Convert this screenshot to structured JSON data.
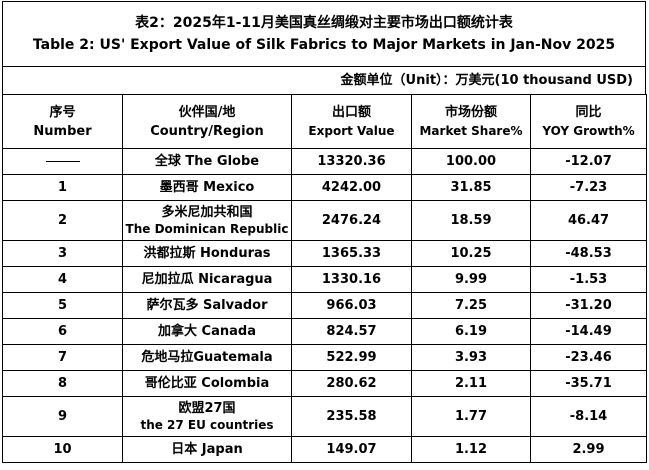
{
  "title": {
    "cn": "表2：2025年1-11月美国真丝绸缎对主要市场出口额统计表",
    "en": "Table 2: US' Export Value of Silk Fabrics to Major Markets in Jan-Nov 2025"
  },
  "unit": "金额单位（Unit）：万美元(10 thousand USD)",
  "headers": [
    {
      "cn": "序号",
      "en": "Number"
    },
    {
      "cn": "伙伴国/地",
      "en": "Country/Region"
    },
    {
      "cn": "出口额",
      "en": "Export Value"
    },
    {
      "cn": "市场份额",
      "en": "Market Share%"
    },
    {
      "cn": "同比",
      "en": "YOY Growth%"
    }
  ],
  "rows": [
    {
      "number": "——",
      "country": "全球  The Globe",
      "country_sub": "",
      "value": "13320.36",
      "share": "100.00",
      "yoy": "-12.07"
    },
    {
      "number": "1",
      "country": "墨西哥 Mexico",
      "country_sub": "",
      "value": "4242.00",
      "share": "31.85",
      "yoy": "-7.23"
    },
    {
      "number": "2",
      "country": "多米尼加共和国",
      "country_sub": "The Dominican Republic",
      "value": "2476.24",
      "share": "18.59",
      "yoy": "46.47"
    },
    {
      "number": "3",
      "country": "洪都拉斯 Honduras",
      "country_sub": "",
      "value": "1365.33",
      "share": "10.25",
      "yoy": "-48.53"
    },
    {
      "number": "4",
      "country": "尼加拉瓜 Nicaragua",
      "country_sub": "",
      "value": "1330.16",
      "share": "9.99",
      "yoy": "-1.53"
    },
    {
      "number": "5",
      "country": "萨尔瓦多 Salvador",
      "country_sub": "",
      "value": "966.03",
      "share": "7.25",
      "yoy": "-31.20"
    },
    {
      "number": "6",
      "country": "加拿大 Canada",
      "country_sub": "",
      "value": "824.57",
      "share": "6.19",
      "yoy": "-14.49"
    },
    {
      "number": "7",
      "country": "危地马拉Guatemala",
      "country_sub": "",
      "value": "522.99",
      "share": "3.93",
      "yoy": "-23.46"
    },
    {
      "number": "8",
      "country": "哥伦比亚 Colombia",
      "country_sub": "",
      "value": "280.62",
      "share": "2.11",
      "yoy": "-35.71"
    },
    {
      "number": "9",
      "country": "欧盟27国",
      "country_sub": "the 27 EU countries",
      "value": "235.58",
      "share": "1.77",
      "yoy": "-8.14"
    },
    {
      "number": "10",
      "country": "日本 Japan",
      "country_sub": "",
      "value": "149.07",
      "share": "1.12",
      "yoy": "2.99"
    }
  ]
}
